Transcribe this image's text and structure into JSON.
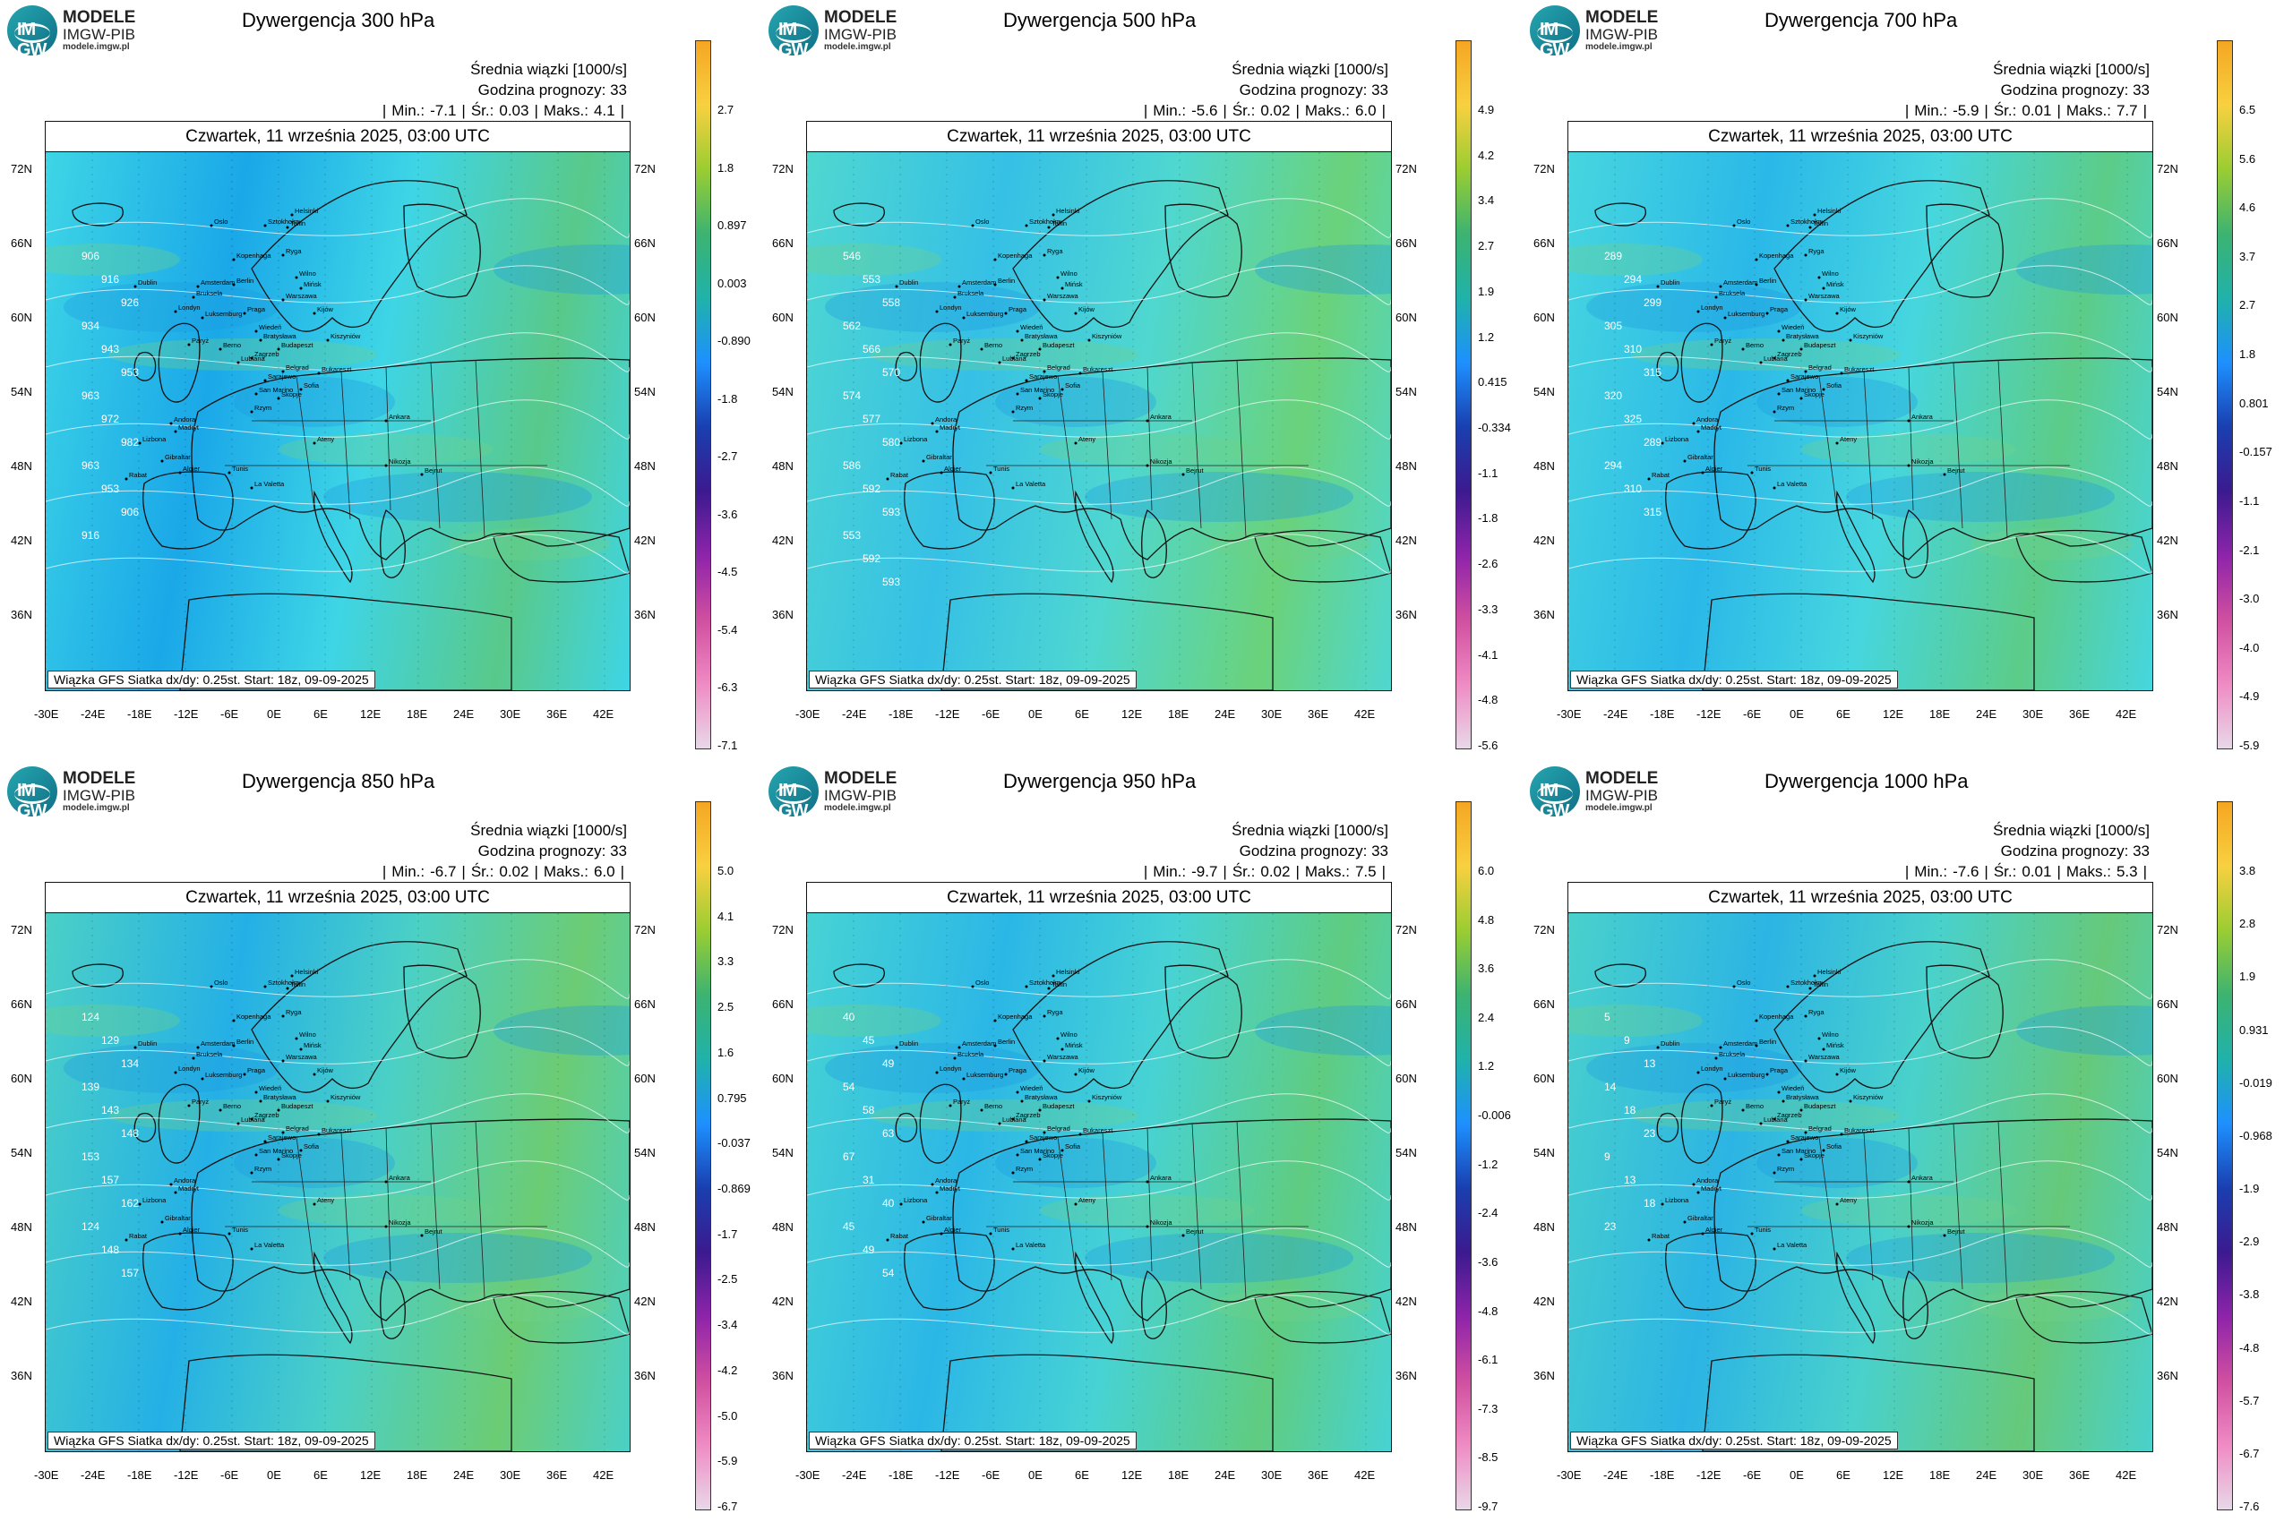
{
  "header": {
    "logo_line1": "MODELE",
    "logo_line2": "IMGW-PIB",
    "logo_line3": "modele.imgw.pl",
    "logo_mark": "IM GW"
  },
  "common": {
    "metric_label": "Średnia wiązki [1000/s]",
    "forecast_hour_label": "Godzina prognozy: 33",
    "date_label": "Czwartek, 11 września 2025, 03:00 UTC",
    "footer": "Wiązka GFS Siatka dx/dy: 0.25st. Start: 18z, 09-09-2025",
    "lat_ticks": [
      "72N",
      "66N",
      "60N",
      "54N",
      "48N",
      "42N",
      "36N"
    ],
    "lon_ticks": [
      "-30E",
      "-24E",
      "-18E",
      "-12E",
      "-6E",
      "0E",
      "6E",
      "12E",
      "18E",
      "24E",
      "30E",
      "36E",
      "42E"
    ],
    "cities": [
      "Oslo",
      "Sztokholm",
      "Helsinki",
      "Tallin",
      "Ryga",
      "Kopenhaga",
      "Wilno",
      "Mińsk",
      "Amsterdam",
      "Berlin",
      "Warszawa",
      "Kijów",
      "Londyn",
      "Bruksela",
      "Praga",
      "Luksemburg",
      "Paryż",
      "Wiedeń",
      "Bratysława",
      "Berno",
      "Budapeszt",
      "Kiszyniów",
      "Zagrzeb",
      "Lublana",
      "Belgrad",
      "Bukareszt",
      "Sarajewo",
      "Sofia",
      "Skopje",
      "Rzym",
      "Andora",
      "Madryt",
      "Lizbona",
      "Gibraltar",
      "Rabat",
      "Algier",
      "Tunis",
      "La Valetta",
      "Ateny",
      "Ankara",
      "Nikozja",
      "Bejrut",
      "Dublin",
      "San Marino"
    ]
  },
  "panels": [
    {
      "title": "Dywergencja 300 hPa",
      "min_label": "Min.:",
      "min": "-7.1",
      "avg_label": "Śr.:",
      "avg": "0.03",
      "max_label": "Maks.:",
      "max": "4.1",
      "colorbar": [
        "2.7",
        "1.8",
        "0.897",
        "0.003",
        "-0.890",
        "-1.8",
        "-2.7",
        "-3.6",
        "-4.5",
        "-5.4",
        "-6.3",
        "-7.1"
      ],
      "contours": [
        "906",
        "916",
        "926",
        "934",
        "943",
        "953",
        "963",
        "972",
        "982",
        "963",
        "953",
        "906",
        "916"
      ]
    },
    {
      "title": "Dywergencja 500 hPa",
      "min_label": "Min.:",
      "min": "-5.6",
      "avg_label": "Śr.:",
      "avg": "0.02",
      "max_label": "Maks.:",
      "max": "6.0",
      "colorbar": [
        "4.9",
        "4.2",
        "3.4",
        "2.7",
        "1.9",
        "1.2",
        "0.415",
        "-0.334",
        "-1.1",
        "-1.8",
        "-2.6",
        "-3.3",
        "-4.1",
        "-4.8",
        "-5.6"
      ],
      "contours": [
        "546",
        "553",
        "558",
        "562",
        "566",
        "570",
        "574",
        "577",
        "580",
        "586",
        "592",
        "593",
        "553",
        "592",
        "593"
      ]
    },
    {
      "title": "Dywergencja 700 hPa",
      "min_label": "Min.:",
      "min": "-5.9",
      "avg_label": "Śr.:",
      "avg": "0.01",
      "max_label": "Maks.:",
      "max": "7.7",
      "colorbar": [
        "6.5",
        "5.6",
        "4.6",
        "3.7",
        "2.7",
        "1.8",
        "0.801",
        "-0.157",
        "-1.1",
        "-2.1",
        "-3.0",
        "-4.0",
        "-4.9",
        "-5.9"
      ],
      "contours": [
        "289",
        "294",
        "299",
        "305",
        "310",
        "315",
        "320",
        "325",
        "289",
        "294",
        "310",
        "315"
      ]
    },
    {
      "title": "Dywergencja 850 hPa",
      "min_label": "Min.:",
      "min": "-6.7",
      "avg_label": "Śr.:",
      "avg": "0.02",
      "max_label": "Maks.:",
      "max": "6.0",
      "colorbar": [
        "5.0",
        "4.1",
        "3.3",
        "2.5",
        "1.6",
        "0.795",
        "-0.037",
        "-0.869",
        "-1.7",
        "-2.5",
        "-3.4",
        "-4.2",
        "-5.0",
        "-5.9",
        "-6.7"
      ],
      "contours": [
        "124",
        "129",
        "134",
        "139",
        "143",
        "148",
        "153",
        "157",
        "162",
        "124",
        "148",
        "157"
      ]
    },
    {
      "title": "Dywergencja 950 hPa",
      "min_label": "Min.:",
      "min": "-9.7",
      "avg_label": "Śr.:",
      "avg": "0.02",
      "max_label": "Maks.:",
      "max": "7.5",
      "colorbar": [
        "6.0",
        "4.8",
        "3.6",
        "2.4",
        "1.2",
        "-0.006",
        "-1.2",
        "-2.4",
        "-3.6",
        "-4.8",
        "-6.1",
        "-7.3",
        "-8.5",
        "-9.7"
      ],
      "contours": [
        "40",
        "45",
        "49",
        "54",
        "58",
        "63",
        "67",
        "31",
        "40",
        "45",
        "49",
        "54"
      ]
    },
    {
      "title": "Dywergencja 1000 hPa",
      "min_label": "Min.:",
      "min": "-7.6",
      "avg_label": "Śr.:",
      "avg": "0.01",
      "max_label": "Maks.:",
      "max": "5.3",
      "colorbar": [
        "3.8",
        "2.8",
        "1.9",
        "0.931",
        "-0.019",
        "-0.968",
        "-1.9",
        "-2.9",
        "-3.8",
        "-4.8",
        "-5.7",
        "-6.7",
        "-7.6"
      ],
      "contours": [
        "5",
        "9",
        "13",
        "14",
        "18",
        "23",
        "9",
        "13",
        "18",
        "23"
      ]
    }
  ]
}
